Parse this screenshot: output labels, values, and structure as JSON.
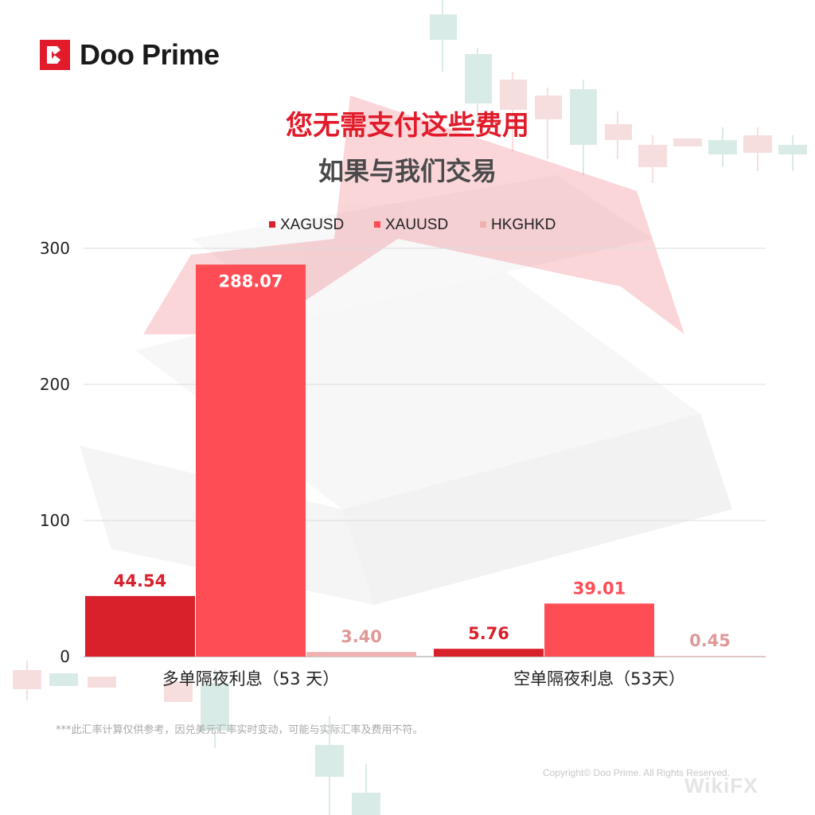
{
  "brand": {
    "name": "Doo Prime",
    "logo_color": "#e11b2a"
  },
  "header": {
    "title": "您无需支付这些费用",
    "subtitle": "如果与我们交易"
  },
  "chart_data": {
    "type": "bar",
    "categories": [
      "多单隔夜利息（53 天）",
      "空单隔夜利息（53天）"
    ],
    "series": [
      {
        "name": "XAGUSD",
        "values": [
          44.54,
          5.76
        ],
        "labels": [
          "44.54",
          "5.76"
        ],
        "color": "#d9212c",
        "label_color": "#d9212c"
      },
      {
        "name": "XAUUSD",
        "values": [
          288.07,
          39.01
        ],
        "labels": [
          "288.07",
          "39.01"
        ],
        "color": "#ff4d55",
        "label_color": "#ff4d55"
      },
      {
        "name": "HKGHKD",
        "values": [
          3.4,
          0.45
        ],
        "labels": [
          "3.40",
          "0.45"
        ],
        "color": "#f0b0b0",
        "label_color": "#e09898"
      }
    ],
    "yticks": [
      0,
      100,
      200,
      300
    ],
    "ylim": [
      0,
      300
    ],
    "grid": true,
    "legend_position": "top-center",
    "inner_label_series": "XAUUSD",
    "inner_label_color": "#ffffff"
  },
  "footer": {
    "note": "***此汇率计算仅供参考，因兑美元汇率实时变动，可能与实际汇率及费用不符。",
    "copyright": "Copyright© Doo Prime. All Rights Reserved.",
    "watermark": "WikiFX"
  }
}
